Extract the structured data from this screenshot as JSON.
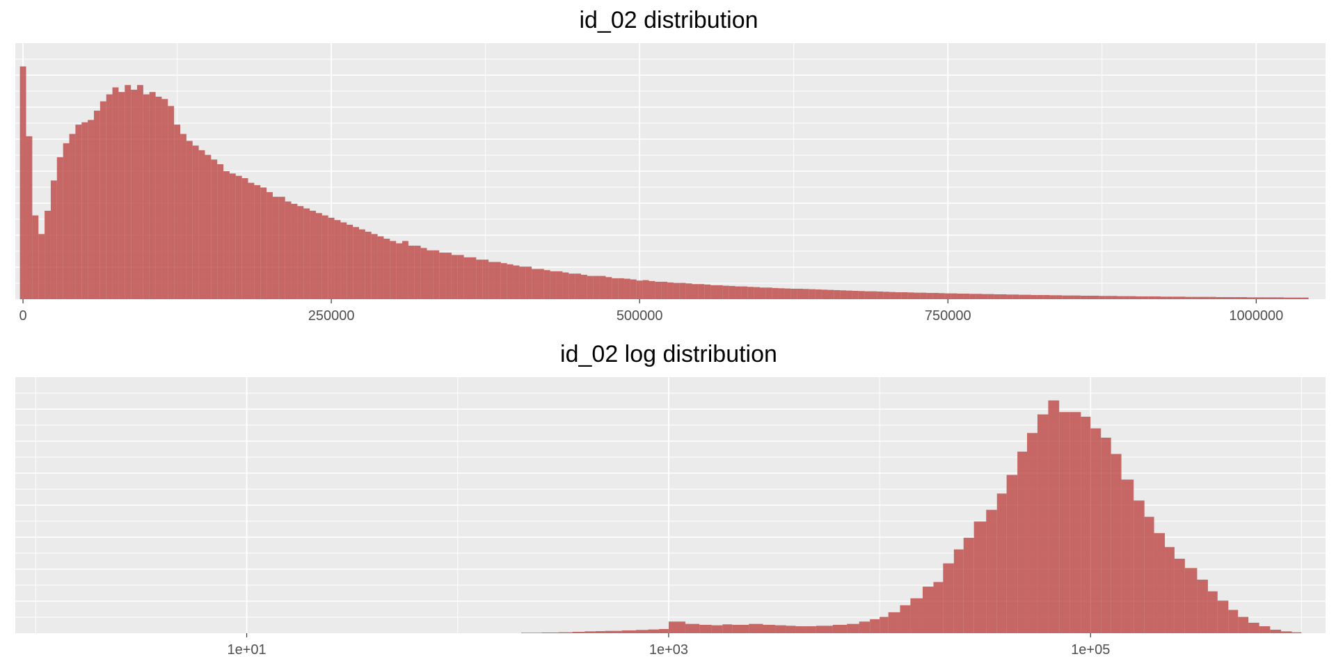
{
  "colors": {
    "panel_background": "#EBEBEB",
    "grid_major": "#FFFFFF",
    "bar_fill": "#C0504D",
    "tick_text": "#4D4D4D",
    "title_text": "#000000"
  },
  "chart_data": [
    {
      "type": "bar",
      "title": "id_02 distribution",
      "xlabel": "",
      "ylabel": "",
      "x_scale": "linear",
      "xlim": [
        -6250,
        1056250
      ],
      "x_ticks": [
        0,
        250000,
        500000,
        750000,
        1000000
      ],
      "x_tick_labels": [
        "0",
        "250000",
        "500000",
        "750000",
        "1000000"
      ],
      "y_axis_labels_shown": false,
      "y_unit": "relative frequency (max bar = 1)",
      "ylim": [
        0,
        1.1
      ],
      "grid": true,
      "bin_width": 5000,
      "bin_start": -2500,
      "values": [
        1.0,
        0.7,
        0.36,
        0.28,
        0.38,
        0.51,
        0.61,
        0.67,
        0.71,
        0.75,
        0.76,
        0.77,
        0.81,
        0.85,
        0.88,
        0.91,
        0.89,
        0.92,
        0.9,
        0.92,
        0.88,
        0.89,
        0.87,
        0.86,
        0.83,
        0.75,
        0.71,
        0.68,
        0.66,
        0.64,
        0.62,
        0.6,
        0.58,
        0.55,
        0.54,
        0.53,
        0.52,
        0.5,
        0.49,
        0.48,
        0.46,
        0.44,
        0.44,
        0.42,
        0.41,
        0.4,
        0.39,
        0.38,
        0.37,
        0.36,
        0.35,
        0.34,
        0.33,
        0.32,
        0.31,
        0.3,
        0.29,
        0.28,
        0.27,
        0.26,
        0.25,
        0.24,
        0.25,
        0.23,
        0.23,
        0.22,
        0.21,
        0.21,
        0.2,
        0.2,
        0.19,
        0.19,
        0.18,
        0.18,
        0.17,
        0.17,
        0.16,
        0.16,
        0.155,
        0.15,
        0.145,
        0.14,
        0.14,
        0.13,
        0.13,
        0.125,
        0.12,
        0.12,
        0.115,
        0.11,
        0.11,
        0.105,
        0.1,
        0.1,
        0.1,
        0.095,
        0.09,
        0.09,
        0.088,
        0.085,
        0.08,
        0.082,
        0.078,
        0.075,
        0.075,
        0.072,
        0.07,
        0.07,
        0.068,
        0.065,
        0.065,
        0.063,
        0.06,
        0.06,
        0.058,
        0.057,
        0.055,
        0.055,
        0.053,
        0.052,
        0.05,
        0.05,
        0.048,
        0.047,
        0.046,
        0.045,
        0.045,
        0.044,
        0.043,
        0.042,
        0.041,
        0.04,
        0.039,
        0.038,
        0.037,
        0.036,
        0.035,
        0.034,
        0.034,
        0.033,
        0.032,
        0.031,
        0.03,
        0.03,
        0.029,
        0.028,
        0.028,
        0.027,
        0.027,
        0.026,
        0.025,
        0.025,
        0.024,
        0.024,
        0.023,
        0.023,
        0.022,
        0.022,
        0.021,
        0.021,
        0.02,
        0.02,
        0.019,
        0.019,
        0.018,
        0.018,
        0.018,
        0.017,
        0.017,
        0.016,
        0.016,
        0.016,
        0.015,
        0.015,
        0.015,
        0.014,
        0.014,
        0.014,
        0.013,
        0.013,
        0.013,
        0.012,
        0.012,
        0.012,
        0.012,
        0.011,
        0.011,
        0.011,
        0.011,
        0.01,
        0.01,
        0.01,
        0.01,
        0.01,
        0.009,
        0.009,
        0.009,
        0.009,
        0.009,
        0.008,
        0.008,
        0.008,
        0.008,
        0.008,
        0.008,
        0.007,
        0.007,
        0.007,
        0.007
      ]
    },
    {
      "type": "bar",
      "title": "id_02 log distribution",
      "xlabel": "",
      "ylabel": "",
      "x_scale": "log10",
      "xlim": [
        0.8,
        1300000
      ],
      "x_ticks": [
        10,
        1000,
        100000
      ],
      "x_tick_labels": [
        "1e+01",
        "1e+03",
        "1e+05"
      ],
      "x_minor_gridlines": [
        1,
        100,
        10000,
        1000000
      ],
      "y_axis_labels_shown": false,
      "y_unit": "relative frequency (max bar = 1)",
      "ylim": [
        0,
        1.1
      ],
      "grid": true,
      "bin_edges": [
        200,
        250,
        300,
        350,
        400,
        450,
        500,
        600,
        700,
        800,
        900,
        1000,
        1200,
        1400,
        1600,
        1800,
        2000,
        2400,
        2800,
        3200,
        3600,
        4000,
        4500,
        5000,
        6000,
        7000,
        8000,
        9000,
        10000,
        11000,
        12500,
        14000,
        16000,
        18000,
        20000,
        22500,
        25000,
        28000,
        32000,
        36000,
        40000,
        45000,
        50000,
        56000,
        63000,
        71000,
        80000,
        90000,
        100000,
        112000,
        125000,
        140000,
        160000,
        180000,
        200000,
        225000,
        250000,
        280000,
        320000,
        360000,
        400000,
        450000,
        500000,
        560000,
        630000,
        710000,
        800000,
        900000,
        1000000
      ],
      "values": [
        0.002,
        0.003,
        0.004,
        0.006,
        0.008,
        0.009,
        0.01,
        0.012,
        0.014,
        0.016,
        0.018,
        0.05,
        0.04,
        0.036,
        0.034,
        0.038,
        0.036,
        0.04,
        0.036,
        0.034,
        0.032,
        0.03,
        0.03,
        0.032,
        0.036,
        0.04,
        0.05,
        0.06,
        0.07,
        0.09,
        0.12,
        0.15,
        0.2,
        0.22,
        0.3,
        0.36,
        0.41,
        0.48,
        0.53,
        0.6,
        0.68,
        0.78,
        0.86,
        0.94,
        1.0,
        0.95,
        0.95,
        0.93,
        0.88,
        0.84,
        0.77,
        0.66,
        0.57,
        0.5,
        0.43,
        0.37,
        0.32,
        0.28,
        0.23,
        0.18,
        0.14,
        0.1,
        0.07,
        0.045,
        0.03,
        0.015,
        0.008,
        0.004
      ]
    }
  ]
}
